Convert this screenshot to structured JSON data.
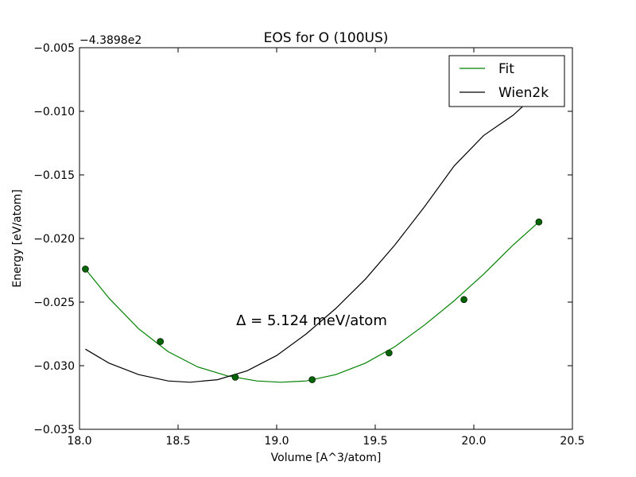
{
  "chart_data": {
    "type": "line",
    "title": "EOS for O (100US)",
    "xlabel": "Volume [A^3/atom]",
    "ylabel": "Energy [eV/atom]",
    "y_offset_label": "−4.3898e2",
    "xlim": [
      18.0,
      20.5
    ],
    "ylim": [
      -0.035,
      -0.005
    ],
    "x_ticks": [
      18.0,
      18.5,
      19.0,
      19.5,
      20.0,
      20.5
    ],
    "x_tick_labels": [
      "18.0",
      "18.5",
      "19.0",
      "19.5",
      "20.0",
      "20.5"
    ],
    "y_ticks": [
      -0.035,
      -0.03,
      -0.025,
      -0.02,
      -0.015,
      -0.01,
      -0.005
    ],
    "y_tick_labels": [
      "−0.035",
      "−0.030",
      "−0.025",
      "−0.020",
      "−0.015",
      "−0.010",
      "−0.005"
    ],
    "grid": false,
    "legend_position": "top-right",
    "annotation": "Δ = 5.124 meV/atom",
    "series": [
      {
        "name": "Fit",
        "color": "#008000",
        "kind": "fit-curve",
        "x": [
          18.03,
          18.15,
          18.3,
          18.45,
          18.6,
          18.75,
          18.9,
          19.02,
          19.15,
          19.3,
          19.45,
          19.6,
          19.75,
          19.9,
          20.05,
          20.2,
          20.33
        ],
        "y": [
          -0.0224,
          -0.0247,
          -0.0271,
          -0.0289,
          -0.0301,
          -0.0308,
          -0.0312,
          -0.0313,
          -0.0312,
          -0.0307,
          -0.0298,
          -0.0285,
          -0.0268,
          -0.0249,
          -0.0228,
          -0.0205,
          -0.0187
        ]
      },
      {
        "name": "Wien2k",
        "color": "#000000",
        "kind": "reference-curve",
        "x": [
          18.03,
          18.15,
          18.3,
          18.45,
          18.56,
          18.7,
          18.85,
          19.0,
          19.15,
          19.3,
          19.45,
          19.6,
          19.75,
          19.9,
          20.05,
          20.2,
          20.27
        ],
        "y": [
          -0.0287,
          -0.0298,
          -0.0307,
          -0.0312,
          -0.0313,
          -0.0311,
          -0.0304,
          -0.0292,
          -0.0275,
          -0.0255,
          -0.0232,
          -0.0205,
          -0.0175,
          -0.0143,
          -0.0119,
          -0.0103,
          -0.0093
        ]
      },
      {
        "name": "data points",
        "color": "#006400",
        "kind": "markers",
        "x": [
          18.03,
          18.41,
          18.79,
          19.18,
          19.57,
          19.95,
          20.33
        ],
        "y": [
          -0.0224,
          -0.0281,
          -0.0309,
          -0.0311,
          -0.029,
          -0.0248,
          -0.0187
        ]
      }
    ]
  }
}
